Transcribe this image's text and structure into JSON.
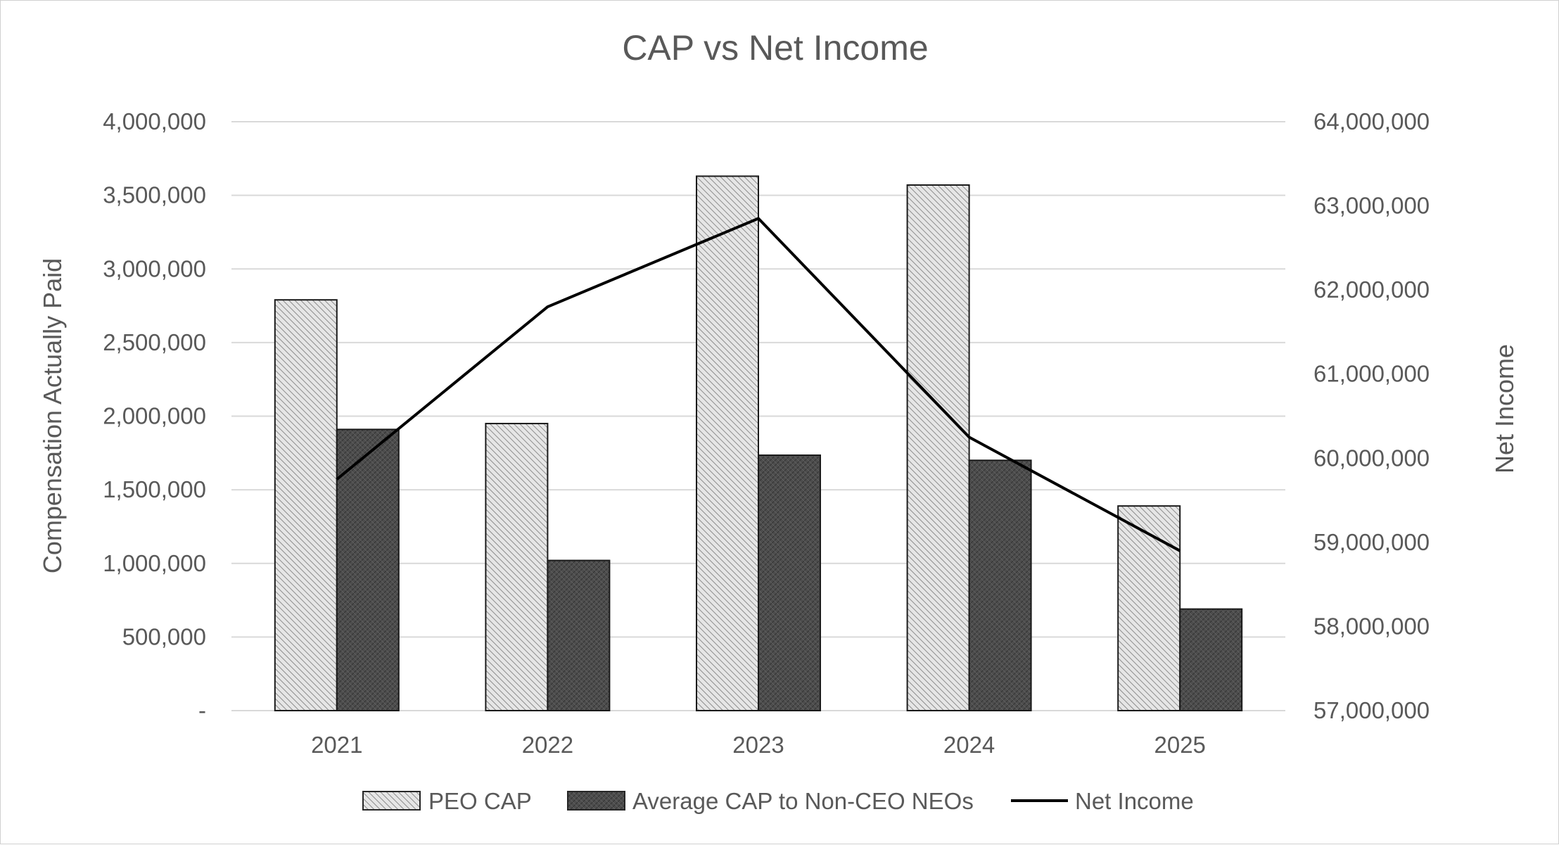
{
  "chart_data": {
    "type": "bar+line",
    "title": "CAP vs Net Income",
    "categories": [
      "2021",
      "2022",
      "2023",
      "2024",
      "2025"
    ],
    "y_left": {
      "label": "Compensation Actually Paid",
      "range": [
        0,
        4000000
      ],
      "tick_values": [
        0,
        500000,
        1000000,
        1500000,
        2000000,
        2500000,
        3000000,
        3500000,
        4000000
      ],
      "tick_labels": [
        "-",
        "500,000",
        "1,000,000",
        "1,500,000",
        "2,000,000",
        "2,500,000",
        "3,000,000",
        "3,500,000",
        "4,000,000"
      ]
    },
    "y_right": {
      "label": "Net Income",
      "range": [
        57000000,
        64000000
      ],
      "tick_values": [
        57000000,
        58000000,
        59000000,
        60000000,
        61000000,
        62000000,
        63000000,
        64000000
      ],
      "tick_labels": [
        "57,000,000",
        "58,000,000",
        "59,000,000",
        "60,000,000",
        "61,000,000",
        "62,000,000",
        "63,000,000",
        "64,000,000"
      ]
    },
    "series": [
      {
        "name": "PEO CAP",
        "kind": "bar",
        "axis": "left",
        "pattern": "light-hatch",
        "values": [
          2790000,
          1950000,
          3630000,
          3570000,
          1390000
        ]
      },
      {
        "name": "Average CAP to Non-CEO NEOs",
        "kind": "bar",
        "axis": "left",
        "pattern": "dark-crosshatch",
        "values": [
          1910000,
          1020000,
          1735000,
          1700000,
          690000
        ]
      },
      {
        "name": "Net Income",
        "kind": "line",
        "axis": "right",
        "color": "#000000",
        "values": [
          59750000,
          61800000,
          62850000,
          60250000,
          58900000
        ]
      }
    ],
    "legend_position": "bottom",
    "grid": true
  }
}
